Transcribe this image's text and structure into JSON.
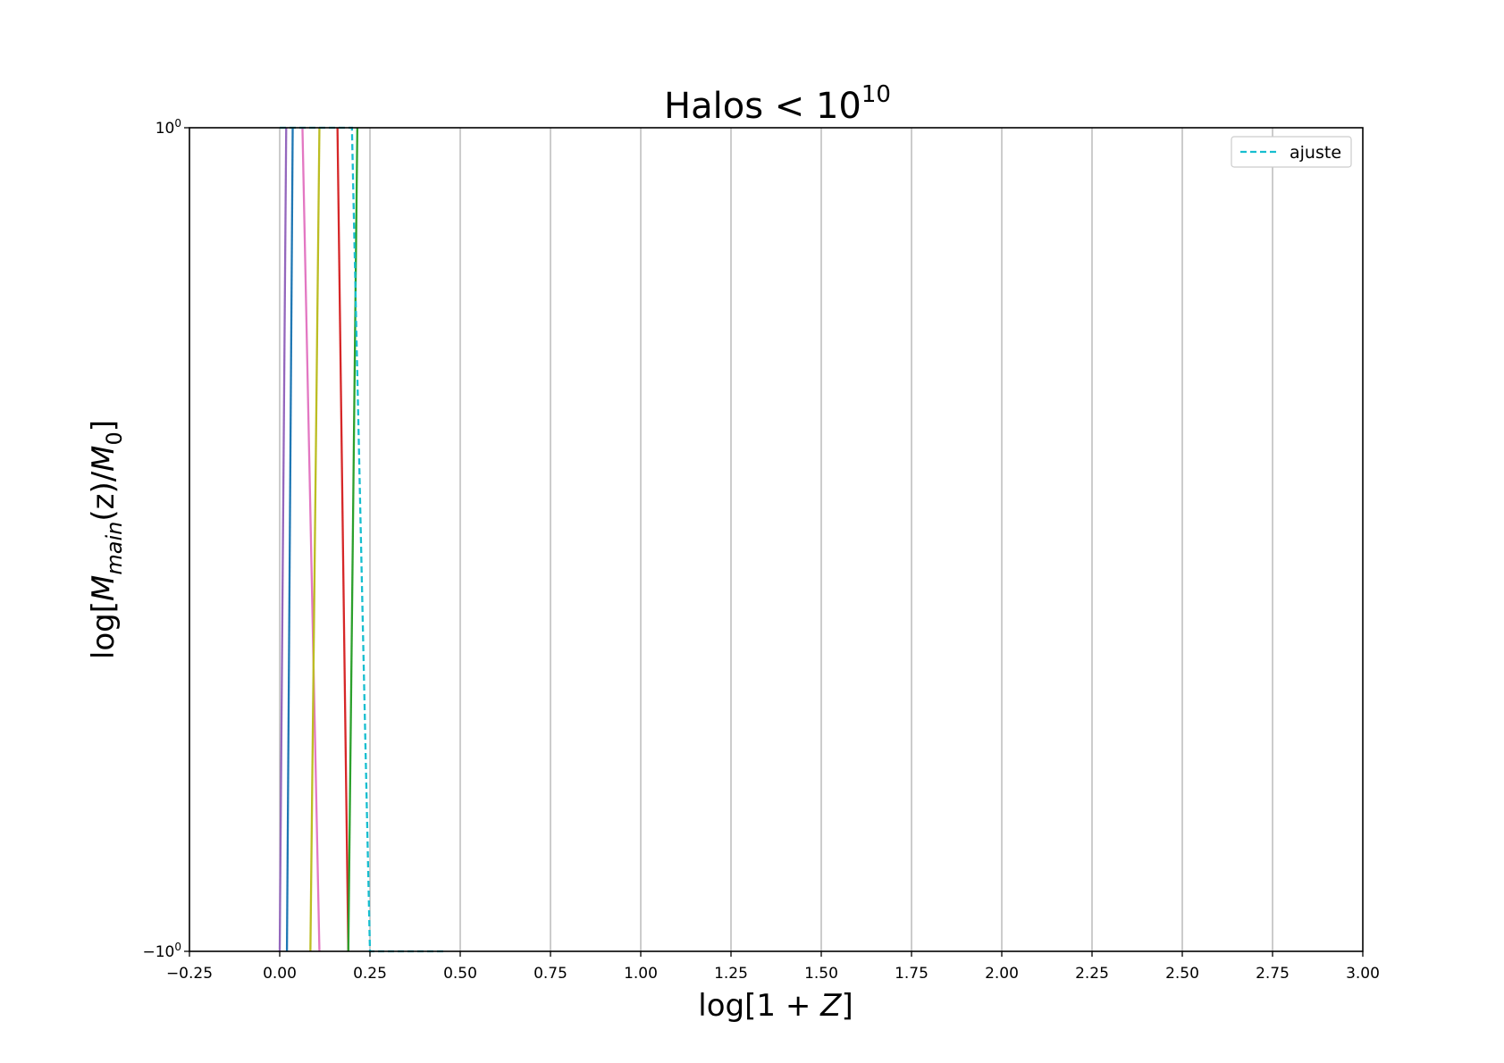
{
  "chart_data": {
    "type": "line",
    "title": {
      "base": "Halos < 10",
      "sup": "10"
    },
    "xlabel": {
      "prefix": "log[1 + ",
      "var": "Z",
      "suffix": "]"
    },
    "ylabel": {
      "prefix": "log[",
      "m1": "M",
      "sub1": "main",
      "mid": "(z)/",
      "m2": "M",
      "sub2": "0",
      "suffix": "]"
    },
    "xlim": [
      -0.25,
      3.0
    ],
    "ylim": [
      -10,
      1
    ],
    "y_scale": "symlog",
    "grid": "x-major",
    "x_ticks": [
      {
        "value": -0.25,
        "label": "−0.25"
      },
      {
        "value": 0.0,
        "label": "0.00"
      },
      {
        "value": 0.25,
        "label": "0.25"
      },
      {
        "value": 0.5,
        "label": "0.50"
      },
      {
        "value": 0.75,
        "label": "0.75"
      },
      {
        "value": 1.0,
        "label": "1.00"
      },
      {
        "value": 1.25,
        "label": "1.25"
      },
      {
        "value": 1.5,
        "label": "1.50"
      },
      {
        "value": 1.75,
        "label": "1.75"
      },
      {
        "value": 2.0,
        "label": "2.00"
      },
      {
        "value": 2.25,
        "label": "2.25"
      },
      {
        "value": 2.5,
        "label": "2.50"
      },
      {
        "value": 2.75,
        "label": "2.75"
      },
      {
        "value": 3.0,
        "label": "3.00"
      }
    ],
    "y_ticks": [
      {
        "value": 1,
        "base": "10",
        "sup": "0"
      },
      {
        "value": -10,
        "base": "−10",
        "sup": "0"
      }
    ],
    "series": [
      {
        "color": "#9467bd",
        "style": "solid",
        "points": [
          [
            0.0,
            -10
          ],
          [
            0.018,
            1
          ]
        ]
      },
      {
        "color": "#1f77b4",
        "style": "solid",
        "points": [
          [
            0.02,
            -10
          ],
          [
            0.036,
            1
          ]
        ]
      },
      {
        "color": "#e377c2",
        "style": "solid",
        "points": [
          [
            0.063,
            1
          ],
          [
            0.11,
            -10
          ]
        ]
      },
      {
        "color": "#bcbd22",
        "style": "solid",
        "points": [
          [
            0.085,
            -10
          ],
          [
            0.11,
            1
          ]
        ]
      },
      {
        "color": "#d62728",
        "style": "solid",
        "points": [
          [
            0.16,
            1
          ],
          [
            0.19,
            -10
          ]
        ]
      },
      {
        "color": "#2ca02c",
        "style": "solid",
        "points": [
          [
            0.19,
            -10
          ],
          [
            0.215,
            1
          ]
        ]
      },
      {
        "name": "ajuste",
        "color": "#17becf",
        "style": "dashed",
        "points": [
          [
            0.0,
            1
          ],
          [
            0.2,
            1
          ],
          [
            0.25,
            -10
          ],
          [
            0.46,
            -10
          ]
        ]
      }
    ],
    "legend": {
      "position": "top-right",
      "entries": [
        {
          "label": "ajuste",
          "color": "#17becf",
          "style": "dashed"
        }
      ]
    }
  }
}
